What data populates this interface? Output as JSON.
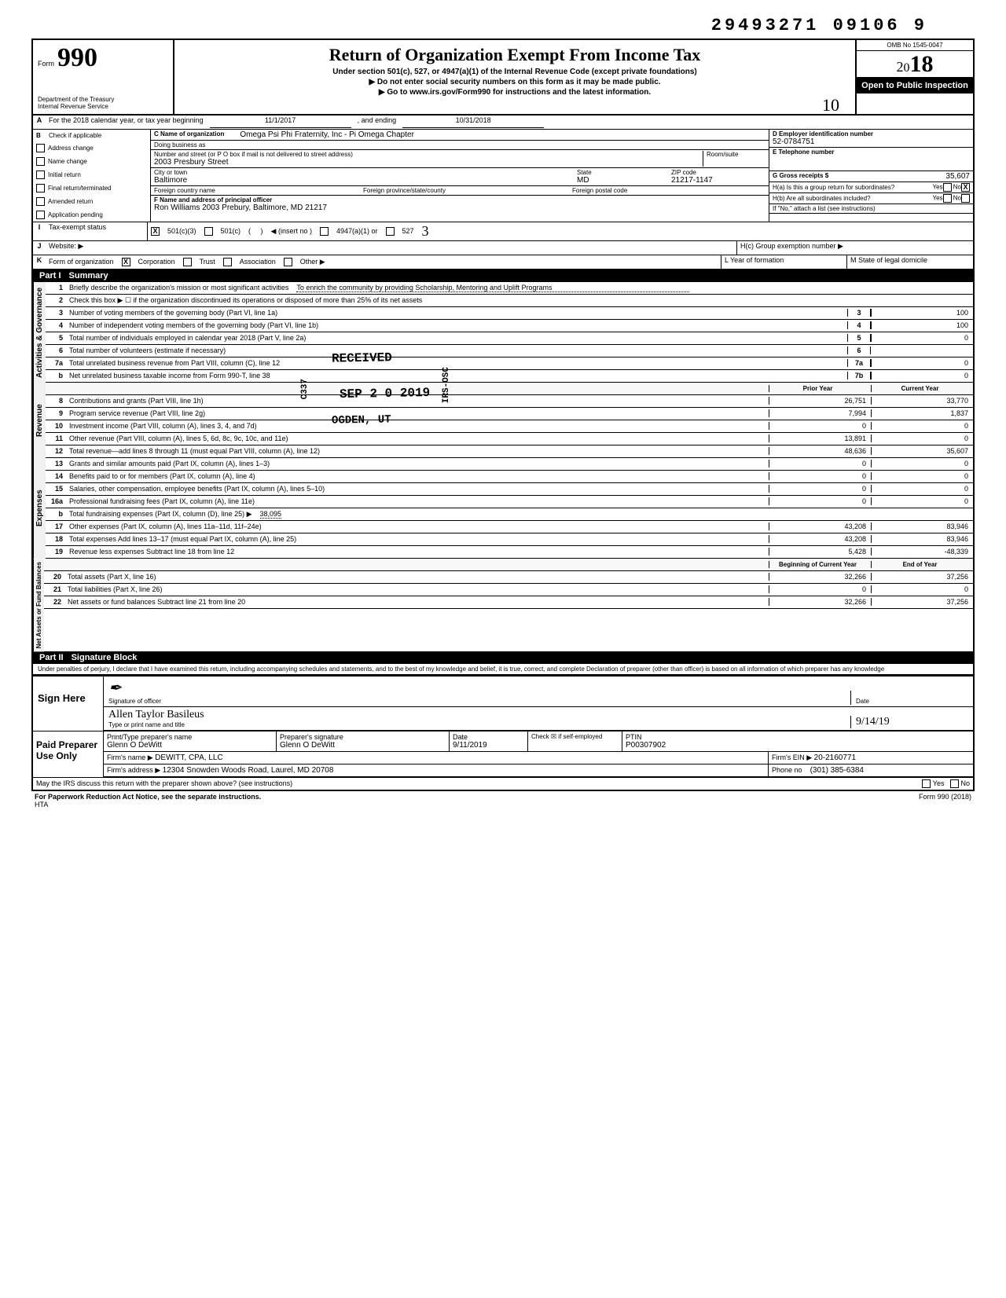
{
  "top_number": "29493271 09106 9",
  "header": {
    "form_no": "990",
    "title": "Return of Organization Exempt From Income Tax",
    "subtitle1": "Under section 501(c), 527, or 4947(a)(1) of the Internal Revenue Code (except private foundations)",
    "subtitle2": "▶ Do not enter social security numbers on this form as it may be made public.",
    "subtitle3": "▶ Go to www.irs.gov/Form990 for instructions and the latest information.",
    "dept1": "Department of the Treasury",
    "dept2": "Internal Revenue Service",
    "omb": "OMB No 1545-0047",
    "year": "2018",
    "open": "Open to Public Inspection"
  },
  "line_a": {
    "label": "A",
    "text": "For the 2018 calendar year, or tax year beginning",
    "begin": "11/1/2017",
    "mid": ", and ending",
    "end": "10/31/2018"
  },
  "section_b": {
    "b_label": "B",
    "check_label": "Check if applicable",
    "checks": [
      "Address change",
      "Name change",
      "Initial return",
      "Final return/terminated",
      "Amended return",
      "Application pending"
    ],
    "c_label": "C Name of organization",
    "org_name": "Omega Psi Phi Fraternity, Inc - Pi Omega Chapter",
    "dba_label": "Doing business as",
    "street_label": "Number and street (or P O box if mail is not delivered to street address)",
    "room_label": "Room/suite",
    "street": "2003 Presbury Street",
    "city_label": "City or town",
    "state_label": "State",
    "zip_label": "ZIP code",
    "city": "Baltimore",
    "state": "MD",
    "zip": "21217-1147",
    "foreign_country": "Foreign country name",
    "foreign_prov": "Foreign province/state/county",
    "foreign_postal": "Foreign postal code",
    "d_label": "D  Employer identification number",
    "ein": "52-0784751",
    "e_label": "E  Telephone number",
    "g_label": "G  Gross receipts $",
    "g_value": "35,607",
    "f_label": "F  Name and address of principal officer",
    "f_value": "Ron Williams 2003 Prebury, Baltimore, MD  21217",
    "h_a": "H(a) Is this a group return for subordinates?",
    "h_b": "H(b) Are all subordinates included?",
    "h_note": "If \"No,\" attach a list (see instructions)",
    "yes": "Yes",
    "no": "No",
    "x": "X"
  },
  "line_i": {
    "label": "I",
    "text": "Tax-exempt status",
    "opt1": "501(c)(3)",
    "opt2": "501(c)",
    "insert": "◀ (insert no )",
    "opt3": "4947(a)(1) or",
    "opt4": "527"
  },
  "line_j": {
    "label": "J",
    "text": "Website: ▶",
    "hc": "H(c) Group exemption number ▶"
  },
  "line_k": {
    "label": "K",
    "text": "Form of organization",
    "opts": [
      "Corporation",
      "Trust",
      "Association",
      "Other ▶"
    ],
    "l": "L Year of formation",
    "m": "M State of legal domicile"
  },
  "part1": {
    "header": "Part I",
    "title": "Summary",
    "mission_label": "Briefly describe the organization's mission or most significant activities",
    "mission": "To enrich the community by providing Scholarship, Mentoring and Uplift Programs",
    "line2": "Check this box ▶ ☐ if the organization discontinued its operations or disposed of more than 25% of its net assets",
    "governance_label": "Activities & Governance",
    "revenue_label": "Revenue",
    "expenses_label": "Expenses",
    "netassets_label": "Net Assets or Fund Balances",
    "lines_gov": [
      {
        "n": "3",
        "d": "Number of voting members of the governing body (Part VI, line 1a)",
        "box": "3",
        "v": "100"
      },
      {
        "n": "4",
        "d": "Number of independent voting members of the governing body (Part VI, line 1b)",
        "box": "4",
        "v": "100"
      },
      {
        "n": "5",
        "d": "Total number of individuals employed in calendar year 2018 (Part V, line 2a)",
        "box": "5",
        "v": "0"
      },
      {
        "n": "6",
        "d": "Total number of volunteers (estimate if necessary)",
        "box": "6",
        "v": ""
      },
      {
        "n": "7a",
        "d": "Total unrelated business revenue from Part VIII, column (C), line 12",
        "box": "7a",
        "v": "0"
      },
      {
        "n": "b",
        "d": "Net unrelated business taxable income from Form 990-T, line 38",
        "box": "7b",
        "v": "0"
      }
    ],
    "prior_year": "Prior Year",
    "current_year": "Current Year",
    "lines_rev": [
      {
        "n": "8",
        "d": "Contributions and grants (Part VIII, line 1h)",
        "a": "26,751",
        "b": "33,770"
      },
      {
        "n": "9",
        "d": "Program service revenue (Part VIII, line 2g)",
        "a": "7,994",
        "b": "1,837"
      },
      {
        "n": "10",
        "d": "Investment income (Part VIII, column (A), lines 3, 4, and 7d)",
        "a": "0",
        "b": "0"
      },
      {
        "n": "11",
        "d": "Other revenue (Part VIII, column (A), lines 5, 6d, 8c, 9c, 10c, and 11e)",
        "a": "13,891",
        "b": "0"
      },
      {
        "n": "12",
        "d": "Total revenue—add lines 8 through 11 (must equal Part VIII, column (A), line 12)",
        "a": "48,636",
        "b": "35,607"
      }
    ],
    "lines_exp": [
      {
        "n": "13",
        "d": "Grants and similar amounts paid (Part IX, column (A), lines 1–3)",
        "a": "0",
        "b": "0"
      },
      {
        "n": "14",
        "d": "Benefits paid to or for members (Part IX, column (A), line 4)",
        "a": "0",
        "b": "0"
      },
      {
        "n": "15",
        "d": "Salaries, other compensation, employee benefits (Part IX, column (A), lines 5–10)",
        "a": "0",
        "b": "0"
      },
      {
        "n": "16a",
        "d": "Professional fundraising fees (Part IX, column (A), line 11e)",
        "a": "0",
        "b": "0"
      },
      {
        "n": "b",
        "d": "Total fundraising expenses (Part IX, column (D), line 25) ▶",
        "inline": "38,095",
        "a": "",
        "b": ""
      },
      {
        "n": "17",
        "d": "Other expenses (Part IX, column (A), lines 11a–11d, 11f–24e)",
        "a": "43,208",
        "b": "83,946"
      },
      {
        "n": "18",
        "d": "Total expenses Add lines 13–17 (must equal Part IX, column (A), line 25)",
        "a": "43,208",
        "b": "83,946"
      },
      {
        "n": "19",
        "d": "Revenue less expenses Subtract line 18 from line 12",
        "a": "5,428",
        "b": "-48,339"
      }
    ],
    "boy": "Beginning of Current Year",
    "eoy": "End of Year",
    "lines_net": [
      {
        "n": "20",
        "d": "Total assets (Part X, line 16)",
        "a": "32,266",
        "b": "37,256"
      },
      {
        "n": "21",
        "d": "Total liabilities (Part X, line 26)",
        "a": "0",
        "b": "0"
      },
      {
        "n": "22",
        "d": "Net assets or fund balances Subtract line 21 from line 20",
        "a": "32,266",
        "b": "37,256"
      }
    ]
  },
  "stamps": {
    "received": "RECEIVED",
    "date": "SEP 2 0 2019",
    "ogden": "OGDEN, UT",
    "code1": "C337",
    "code2": "IRS-OSC",
    "hand_top": "10",
    "hand_527": "3"
  },
  "part2": {
    "header": "Part II",
    "title": "Signature Block",
    "penalty": "Under penalties of perjury, I declare that I have examined this return, including accompanying schedules and statements, and to the best of my knowledge and belief, it is true, correct, and complete Declaration of preparer (other than officer) is based on all information of which preparer has any knowledge",
    "sign_here": "Sign Here",
    "sig_officer": "Signature of officer",
    "date": "Date",
    "typed_name": "Type or print name and title",
    "name_hand": "Allen Taylor  Basileus",
    "date_hand": "9/14/19"
  },
  "preparer": {
    "label": "Paid Preparer Use Only",
    "col_name": "Print/Type preparer's name",
    "col_sig": "Preparer's signature",
    "col_date": "Date",
    "col_check": "Check ☒ if self-employed",
    "col_ptin": "PTIN",
    "name": "Glenn O DeWitt",
    "sig": "Glenn O DeWitt",
    "date": "9/11/2019",
    "ptin": "P00307902",
    "firm_name_label": "Firm's name ▶",
    "firm_name": "DEWITT, CPA, LLC",
    "firm_ein_label": "Firm's EIN ▶",
    "firm_ein": "20-2160771",
    "firm_addr_label": "Firm's address ▶",
    "firm_addr": "12304 Snowden Woods Road, Laurel, MD 20708",
    "phone_label": "Phone no",
    "phone": "(301) 385-6384"
  },
  "bottom": {
    "discuss": "May the IRS discuss this return with the preparer shown above? (see instructions)",
    "yes": "Yes",
    "no": "No",
    "paperwork": "For Paperwork Reduction Act Notice, see the separate instructions.",
    "hta": "HTA",
    "formno": "Form 990 (2018)"
  }
}
